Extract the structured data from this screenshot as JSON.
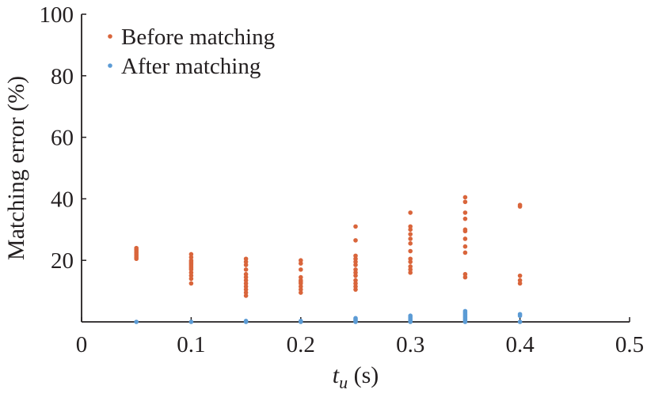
{
  "chart_data": {
    "type": "scatter",
    "xlabel": "t_u (s)",
    "xlabel_parts": {
      "main": "t",
      "sub": "u",
      "rest": " (s)"
    },
    "ylabel": "Matching error (%)",
    "xlim": [
      0,
      0.5
    ],
    "ylim": [
      0,
      100
    ],
    "xticks": [
      0,
      0.1,
      0.2,
      0.3,
      0.4,
      0.5
    ],
    "xtick_labels": [
      "0",
      "0.1",
      "0.2",
      "0.3",
      "0.4",
      "0.5"
    ],
    "yticks": [
      20,
      40,
      60,
      80,
      100
    ],
    "ytick_labels": [
      "20",
      "40",
      "60",
      "80",
      "100"
    ],
    "grid": false,
    "legend_position": "top-left",
    "series": [
      {
        "name": "Before matching",
        "color": "#d9653b",
        "points": [
          [
            0.05,
            20.5
          ],
          [
            0.05,
            21.0
          ],
          [
            0.05,
            21.5
          ],
          [
            0.05,
            22.0
          ],
          [
            0.05,
            22.5
          ],
          [
            0.05,
            23.0
          ],
          [
            0.05,
            23.5
          ],
          [
            0.05,
            24.0
          ],
          [
            0.1,
            12.5
          ],
          [
            0.1,
            14.0
          ],
          [
            0.1,
            15.0
          ],
          [
            0.1,
            16.0
          ],
          [
            0.1,
            17.0
          ],
          [
            0.1,
            17.5
          ],
          [
            0.1,
            18.0
          ],
          [
            0.1,
            18.5
          ],
          [
            0.1,
            19.0
          ],
          [
            0.1,
            19.5
          ],
          [
            0.1,
            20.0
          ],
          [
            0.1,
            21.0
          ],
          [
            0.1,
            22.0
          ],
          [
            0.15,
            8.5
          ],
          [
            0.15,
            9.5
          ],
          [
            0.15,
            10.5
          ],
          [
            0.15,
            11.5
          ],
          [
            0.15,
            12.5
          ],
          [
            0.15,
            13.5
          ],
          [
            0.15,
            14.5
          ],
          [
            0.15,
            15.5
          ],
          [
            0.15,
            17.0
          ],
          [
            0.15,
            18.5
          ],
          [
            0.15,
            19.5
          ],
          [
            0.15,
            20.5
          ],
          [
            0.2,
            9.5
          ],
          [
            0.2,
            10.5
          ],
          [
            0.2,
            11.5
          ],
          [
            0.2,
            12.5
          ],
          [
            0.2,
            13.0
          ],
          [
            0.2,
            13.5
          ],
          [
            0.2,
            14.5
          ],
          [
            0.2,
            17.0
          ],
          [
            0.2,
            19.0
          ],
          [
            0.2,
            20.0
          ],
          [
            0.25,
            10.5
          ],
          [
            0.25,
            11.5
          ],
          [
            0.25,
            12.5
          ],
          [
            0.25,
            13.5
          ],
          [
            0.25,
            15.0
          ],
          [
            0.25,
            16.0
          ],
          [
            0.25,
            17.0
          ],
          [
            0.25,
            18.5
          ],
          [
            0.25,
            19.5
          ],
          [
            0.25,
            20.5
          ],
          [
            0.25,
            21.5
          ],
          [
            0.25,
            26.5
          ],
          [
            0.25,
            31.0
          ],
          [
            0.3,
            16.0
          ],
          [
            0.3,
            17.0
          ],
          [
            0.3,
            18.0
          ],
          [
            0.3,
            19.5
          ],
          [
            0.3,
            20.5
          ],
          [
            0.3,
            23.0
          ],
          [
            0.3,
            25.5
          ],
          [
            0.3,
            27.0
          ],
          [
            0.3,
            28.5
          ],
          [
            0.3,
            30.0
          ],
          [
            0.3,
            31.0
          ],
          [
            0.3,
            35.5
          ],
          [
            0.35,
            14.5
          ],
          [
            0.35,
            15.5
          ],
          [
            0.35,
            22.5
          ],
          [
            0.35,
            24.5
          ],
          [
            0.35,
            27.0
          ],
          [
            0.35,
            29.5
          ],
          [
            0.35,
            30.0
          ],
          [
            0.35,
            33.5
          ],
          [
            0.35,
            35.5
          ],
          [
            0.35,
            39.0
          ],
          [
            0.35,
            40.5
          ],
          [
            0.4,
            12.5
          ],
          [
            0.4,
            13.5
          ],
          [
            0.4,
            15.0
          ],
          [
            0.4,
            37.5
          ],
          [
            0.4,
            38.0
          ]
        ]
      },
      {
        "name": "After matching",
        "color": "#5b9bd5",
        "points": [
          [
            0.05,
            0.0
          ],
          [
            0.1,
            0.0
          ],
          [
            0.15,
            0.0
          ],
          [
            0.15,
            0.3
          ],
          [
            0.2,
            0.0
          ],
          [
            0.2,
            0.3
          ],
          [
            0.25,
            0.0
          ],
          [
            0.25,
            0.4
          ],
          [
            0.25,
            0.8
          ],
          [
            0.25,
            1.2
          ],
          [
            0.3,
            0.0
          ],
          [
            0.3,
            0.5
          ],
          [
            0.3,
            1.0
          ],
          [
            0.3,
            1.5
          ],
          [
            0.3,
            2.0
          ],
          [
            0.35,
            0.0
          ],
          [
            0.35,
            0.5
          ],
          [
            0.35,
            1.0
          ],
          [
            0.35,
            1.5
          ],
          [
            0.35,
            2.0
          ],
          [
            0.35,
            2.5
          ],
          [
            0.35,
            3.0
          ],
          [
            0.35,
            3.5
          ],
          [
            0.4,
            0.0
          ],
          [
            0.4,
            2.0
          ],
          [
            0.4,
            2.5
          ]
        ]
      }
    ]
  }
}
